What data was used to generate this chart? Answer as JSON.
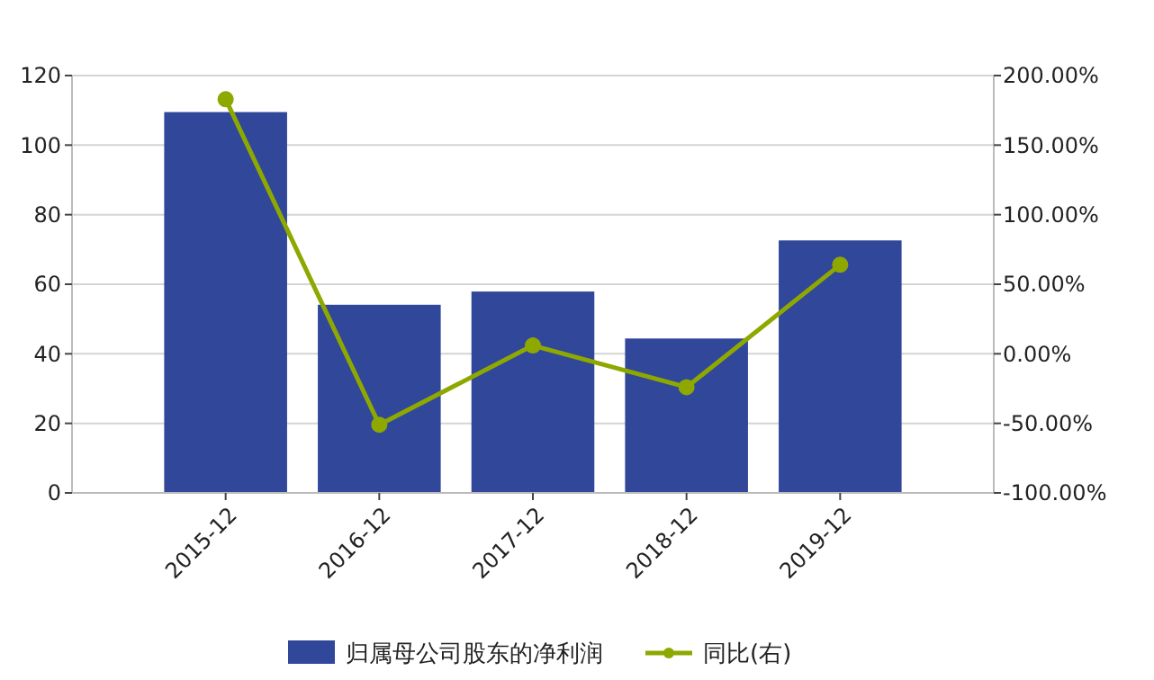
{
  "chart_data": {
    "type": "bar",
    "categories": [
      "2015-12",
      "2016-12",
      "2017-12",
      "2018-12",
      "2019-12"
    ],
    "series": [
      {
        "name": "归属母公司股东的净利润",
        "color": "#30479a",
        "values": [
          109.5,
          54.1,
          57.9,
          44.4,
          72.6
        ]
      },
      {
        "name": "同比(右)",
        "type": "line",
        "axis": "y2",
        "color": "#8ea800",
        "values": [
          183,
          -51,
          6,
          -24,
          64
        ]
      }
    ],
    "ylim": [
      0,
      120
    ],
    "yticks": [
      0,
      20,
      40,
      60,
      80,
      100,
      120
    ],
    "y2lim": [
      -100,
      200
    ],
    "y2ticks": [
      {
        "value": -100,
        "label": "-100.00%"
      },
      {
        "value": -50,
        "label": "-50.00%"
      },
      {
        "value": 0,
        "label": "0.00%"
      },
      {
        "value": 50,
        "label": "50.00%"
      },
      {
        "value": 100,
        "label": "100.00%"
      },
      {
        "value": 150,
        "label": "150.00%"
      },
      {
        "value": 200,
        "label": "200.00%"
      }
    ],
    "grid": "y",
    "legend": "bottom",
    "marker": "circle",
    "line_style": "solid"
  }
}
